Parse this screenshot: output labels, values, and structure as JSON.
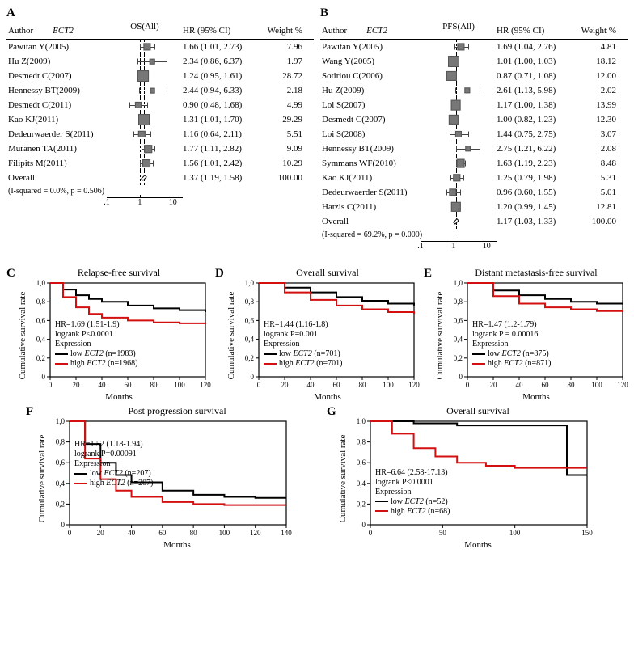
{
  "gene": "ECT2",
  "colors": {
    "low": "#000000",
    "high": "#d40f0f",
    "axis": "#000000",
    "marker_fill": "#808080",
    "marker_border": "#555555",
    "bg": "#ffffff"
  },
  "forest": {
    "A": {
      "panel_label": "A",
      "header_author": "Author",
      "header_outcome": "OS(All)",
      "header_hr": "HR (95% CI)",
      "header_weight": "Weight %",
      "log_min": 0.1,
      "log_max": 20,
      "axis_ticks": [
        0.1,
        1,
        10
      ],
      "axis_tick_labels": [
        ".1",
        "1",
        "10"
      ],
      "pooled_hr": 1.37,
      "rows": [
        {
          "author": "Pawitan Y(2005)",
          "hr": 1.66,
          "lo": 1.01,
          "hi": 2.73,
          "weight": 7.96
        },
        {
          "author": "Hu Z(2009)",
          "hr": 2.34,
          "lo": 0.86,
          "hi": 6.37,
          "weight": 1.97
        },
        {
          "author": "Desmedt C(2007)",
          "hr": 1.24,
          "lo": 0.95,
          "hi": 1.61,
          "weight": 28.72
        },
        {
          "author": "Hennessy BT(2009)",
          "hr": 2.44,
          "lo": 0.94,
          "hi": 6.33,
          "weight": 2.18
        },
        {
          "author": "Desmedt C(2011)",
          "hr": 0.9,
          "lo": 0.48,
          "hi": 1.68,
          "weight": 4.99
        },
        {
          "author": "Kao KJ(2011)",
          "hr": 1.31,
          "lo": 1.01,
          "hi": 1.7,
          "weight": 29.29
        },
        {
          "author": "Dedeurwaerder S(2011)",
          "hr": 1.16,
          "lo": 0.64,
          "hi": 2.11,
          "weight": 5.51
        },
        {
          "author": "Muranen TA(2011)",
          "hr": 1.77,
          "lo": 1.11,
          "hi": 2.82,
          "weight": 9.09
        },
        {
          "author": "Filipits M(2011)",
          "hr": 1.56,
          "lo": 1.01,
          "hi": 2.42,
          "weight": 10.29
        }
      ],
      "overall_label": "Overall",
      "overall": {
        "hr": 1.37,
        "lo": 1.19,
        "hi": 1.58,
        "weight": 100.0
      },
      "heterogeneity": "(I-squared = 0.0%, p = 0.506)"
    },
    "B": {
      "panel_label": "B",
      "header_author": "Author",
      "header_outcome": "PFS(All)",
      "header_hr": "HR (95% CI)",
      "header_weight": "Weight %",
      "log_min": 0.1,
      "log_max": 20,
      "axis_ticks": [
        0.1,
        1,
        10
      ],
      "axis_tick_labels": [
        ".1",
        "1",
        "10"
      ],
      "pooled_hr": 1.17,
      "rows": [
        {
          "author": "Pawitan Y(2005)",
          "hr": 1.69,
          "lo": 1.04,
          "hi": 2.76,
          "weight": 4.81
        },
        {
          "author": "Wang Y(2005)",
          "hr": 1.01,
          "lo": 1.0,
          "hi": 1.03,
          "weight": 18.12
        },
        {
          "author": "Sotiriou C(2006)",
          "hr": 0.87,
          "lo": 0.71,
          "hi": 1.08,
          "weight": 12.0
        },
        {
          "author": "Hu Z(2009)",
          "hr": 2.61,
          "lo": 1.13,
          "hi": 5.98,
          "weight": 2.02
        },
        {
          "author": "Loi S(2007)",
          "hr": 1.17,
          "lo": 1.0,
          "hi": 1.38,
          "weight": 13.99
        },
        {
          "author": "Desmedt C(2007)",
          "hr": 1.0,
          "lo": 0.82,
          "hi": 1.23,
          "weight": 12.3
        },
        {
          "author": "Loi S(2008)",
          "hr": 1.44,
          "lo": 0.75,
          "hi": 2.75,
          "weight": 3.07
        },
        {
          "author": "Hennessy BT(2009)",
          "hr": 2.75,
          "lo": 1.21,
          "hi": 6.22,
          "weight": 2.08
        },
        {
          "author": "Symmans WF(2010)",
          "hr": 1.63,
          "lo": 1.19,
          "hi": 2.23,
          "weight": 8.48
        },
        {
          "author": "Kao KJ(2011)",
          "hr": 1.25,
          "lo": 0.79,
          "hi": 1.98,
          "weight": 5.31
        },
        {
          "author": "Dedeurwaerder S(2011)",
          "hr": 0.96,
          "lo": 0.6,
          "hi": 1.55,
          "weight": 5.01
        },
        {
          "author": "Hatzis C(2011)",
          "hr": 1.2,
          "lo": 0.99,
          "hi": 1.45,
          "weight": 12.81
        }
      ],
      "overall_label": "Overall",
      "overall": {
        "hr": 1.17,
        "lo": 1.03,
        "hi": 1.33,
        "weight": 100.0
      },
      "heterogeneity": "(I-squared = 69.2%, p = 0.000)"
    }
  },
  "survival": {
    "common": {
      "y_label": "Cumulative survival rate",
      "x_label": "Months",
      "y_ticks": [
        0,
        0.2,
        0.4,
        0.6,
        0.8,
        1.0
      ],
      "y_tick_labels": [
        "0",
        "0,2",
        "0,4",
        "0,6",
        "0,8",
        "1,0"
      ],
      "axis_color": "#000000",
      "line_width": 2
    },
    "C": {
      "panel_label": "C",
      "title": "Relapse-free survival",
      "hr_text": "HR=1.69 (1.51-1.9)",
      "p_text": "logrank P<0.0001",
      "expr_label": "Expression",
      "low_label": "low ECT2 (n=1983)",
      "high_label": "high ECT2 (n=1968)",
      "x_max": 120,
      "x_ticks": [
        0,
        20,
        40,
        60,
        80,
        100,
        120
      ],
      "low_curve": [
        [
          0,
          1.0
        ],
        [
          10,
          0.93
        ],
        [
          20,
          0.87
        ],
        [
          30,
          0.83
        ],
        [
          40,
          0.8
        ],
        [
          60,
          0.76
        ],
        [
          80,
          0.73
        ],
        [
          100,
          0.71
        ],
        [
          120,
          0.69
        ]
      ],
      "high_curve": [
        [
          0,
          1.0
        ],
        [
          10,
          0.85
        ],
        [
          20,
          0.74
        ],
        [
          30,
          0.67
        ],
        [
          40,
          0.63
        ],
        [
          60,
          0.6
        ],
        [
          80,
          0.58
        ],
        [
          100,
          0.57
        ],
        [
          120,
          0.56
        ]
      ]
    },
    "D": {
      "panel_label": "D",
      "title": "Overall survival",
      "hr_text": "HR=1.44 (1.16-1.8)",
      "p_text": "logrank P=0.001",
      "expr_label": "Expression",
      "low_label": "low ECT2 (n=701)",
      "high_label": "high ECT2 (n=701)",
      "x_max": 120,
      "x_ticks": [
        0,
        20,
        40,
        60,
        80,
        100,
        120
      ],
      "low_curve": [
        [
          0,
          1.0
        ],
        [
          20,
          0.95
        ],
        [
          40,
          0.9
        ],
        [
          60,
          0.85
        ],
        [
          80,
          0.81
        ],
        [
          100,
          0.78
        ],
        [
          120,
          0.76
        ]
      ],
      "high_curve": [
        [
          0,
          1.0
        ],
        [
          20,
          0.9
        ],
        [
          40,
          0.82
        ],
        [
          60,
          0.76
        ],
        [
          80,
          0.72
        ],
        [
          100,
          0.69
        ],
        [
          120,
          0.67
        ]
      ]
    },
    "E": {
      "panel_label": "E",
      "title": "Distant metastasis-free survival",
      "hr_text": "HR=1.47 (1.2-1.79)",
      "p_text": "logrank P = 0.00016",
      "expr_label": "Expression",
      "low_label": "low ECT2  (n=875)",
      "high_label": "high ECT2 (n=871)",
      "x_max": 120,
      "x_ticks": [
        0,
        20,
        40,
        60,
        80,
        100,
        120
      ],
      "low_curve": [
        [
          0,
          1.0
        ],
        [
          20,
          0.92
        ],
        [
          40,
          0.87
        ],
        [
          60,
          0.83
        ],
        [
          80,
          0.8
        ],
        [
          100,
          0.78
        ],
        [
          120,
          0.77
        ]
      ],
      "high_curve": [
        [
          0,
          1.0
        ],
        [
          20,
          0.86
        ],
        [
          40,
          0.78
        ],
        [
          60,
          0.74
        ],
        [
          80,
          0.72
        ],
        [
          100,
          0.7
        ],
        [
          120,
          0.69
        ]
      ]
    },
    "F": {
      "panel_label": "F",
      "title": "Post progression survival",
      "hr_text": "HR=1.52 (1.18-1.94)",
      "p_text": "logrank P=0.00091",
      "expr_label": "Expression",
      "low_label": "low ECT2  (n=207)",
      "high_label": "high ECT2 (n=207)",
      "x_max": 140,
      "x_ticks": [
        0,
        20,
        40,
        60,
        80,
        100,
        120,
        140
      ],
      "low_curve": [
        [
          0,
          1.0
        ],
        [
          10,
          0.78
        ],
        [
          20,
          0.6
        ],
        [
          30,
          0.48
        ],
        [
          40,
          0.41
        ],
        [
          60,
          0.33
        ],
        [
          80,
          0.29
        ],
        [
          100,
          0.27
        ],
        [
          120,
          0.26
        ],
        [
          140,
          0.26
        ]
      ],
      "high_curve": [
        [
          0,
          1.0
        ],
        [
          10,
          0.64
        ],
        [
          20,
          0.44
        ],
        [
          30,
          0.33
        ],
        [
          40,
          0.27
        ],
        [
          60,
          0.22
        ],
        [
          80,
          0.2
        ],
        [
          100,
          0.19
        ],
        [
          120,
          0.19
        ],
        [
          140,
          0.19
        ]
      ]
    },
    "G": {
      "panel_label": "G",
      "title": "Overall survival",
      "hr_text": "HR=6.64 (2.58-17.13)",
      "p_text": "logrank P<0.0001",
      "expr_label": "Expression",
      "low_label": "low ECT2 (n=52)",
      "high_label": "high ECT2 (n=68)",
      "x_max": 150,
      "x_ticks": [
        0,
        50,
        100,
        150
      ],
      "low_curve": [
        [
          0,
          1.0
        ],
        [
          30,
          0.98
        ],
        [
          60,
          0.96
        ],
        [
          90,
          0.96
        ],
        [
          120,
          0.96
        ],
        [
          135,
          0.96
        ],
        [
          136,
          0.48
        ],
        [
          150,
          0.48
        ]
      ],
      "high_curve": [
        [
          0,
          1.0
        ],
        [
          15,
          0.88
        ],
        [
          30,
          0.74
        ],
        [
          45,
          0.66
        ],
        [
          60,
          0.6
        ],
        [
          80,
          0.57
        ],
        [
          100,
          0.55
        ],
        [
          130,
          0.55
        ],
        [
          150,
          0.55
        ]
      ]
    }
  }
}
